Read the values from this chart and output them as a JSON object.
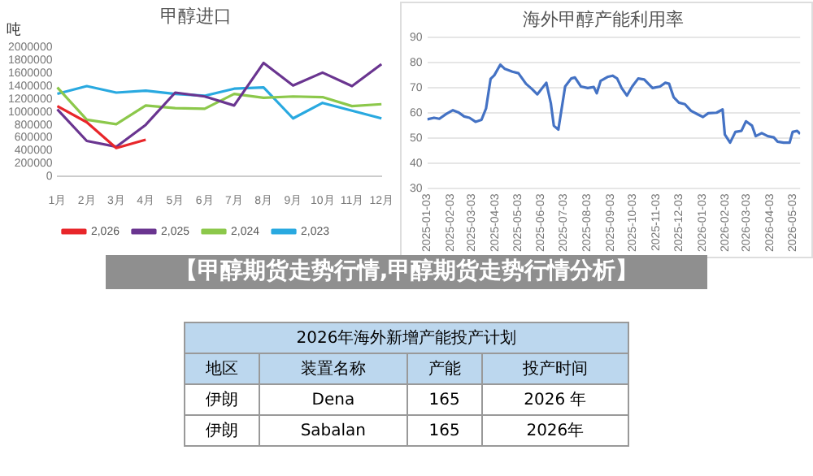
{
  "chart_data": [
    {
      "type": "line",
      "title": "甲醇进口",
      "ylabel": "吨",
      "categories": [
        "1月",
        "2月",
        "3月",
        "4月",
        "5月",
        "6月",
        "7月",
        "8月",
        "9月",
        "10月",
        "11月",
        "12月"
      ],
      "ylim": [
        0,
        2000000
      ],
      "yticks": [
        0,
        200000,
        400000,
        600000,
        800000,
        1000000,
        1200000,
        1400000,
        1600000,
        1800000,
        2000000
      ],
      "grid": false,
      "legend": "bottom",
      "series": [
        {
          "name": "2,026",
          "color": "#e8262a",
          "values": [
            1090000,
            840000,
            440000,
            570000,
            null,
            null,
            null,
            null,
            null,
            null,
            null,
            null
          ]
        },
        {
          "name": "2,025",
          "color": "#6a3590",
          "values": [
            1040000,
            550000,
            460000,
            800000,
            1300000,
            1240000,
            1100000,
            1760000,
            1410000,
            1610000,
            1400000,
            1740000
          ]
        },
        {
          "name": "2,024",
          "color": "#8cc84b",
          "values": [
            1380000,
            880000,
            810000,
            1100000,
            1060000,
            1050000,
            1280000,
            1220000,
            1240000,
            1230000,
            1090000,
            1120000
          ]
        },
        {
          "name": "2,023",
          "color": "#29a9e0",
          "values": [
            1280000,
            1400000,
            1300000,
            1330000,
            1280000,
            1250000,
            1360000,
            1380000,
            900000,
            1140000,
            1020000,
            900000
          ]
        }
      ]
    },
    {
      "type": "line",
      "title": "海外甲醇产能利用率",
      "ylim": [
        30,
        90
      ],
      "yticks": [
        30,
        40,
        50,
        60,
        70,
        80,
        90
      ],
      "grid": "y",
      "legend": false,
      "xlim": [
        "2025-01-03",
        "2026-05-13"
      ],
      "xticks": [
        "2025-01-03",
        "2025-02-03",
        "2025-03-03",
        "2025-04-03",
        "2025-05-03",
        "2025-06-03",
        "2025-07-03",
        "2025-08-03",
        "2025-09-03",
        "2025-10-03",
        "2025-11-03",
        "2025-12-03",
        "2026-01-03",
        "2026-02-03",
        "2026-03-03",
        "2026-04-03",
        "2026-05-03"
      ],
      "x": [
        "2025-01-03",
        "2025-01-12",
        "2025-01-19",
        "2025-01-28",
        "2025-02-06",
        "2025-02-13",
        "2025-02-21",
        "2025-02-28",
        "2025-03-08",
        "2025-03-16",
        "2025-03-22",
        "2025-03-28",
        "2025-04-02",
        "2025-04-10",
        "2025-04-16",
        "2025-04-26",
        "2025-05-04",
        "2025-05-14",
        "2025-05-22",
        "2025-05-29",
        "2025-06-10",
        "2025-06-16",
        "2025-06-20",
        "2025-06-26",
        "2025-07-05",
        "2025-07-13",
        "2025-07-18",
        "2025-07-26",
        "2025-08-04",
        "2025-08-12",
        "2025-08-16",
        "2025-08-21",
        "2025-08-31",
        "2025-09-06",
        "2025-09-12",
        "2025-09-18",
        "2025-09-25",
        "2025-10-02",
        "2025-10-10",
        "2025-10-18",
        "2025-10-29",
        "2025-11-08",
        "2025-11-15",
        "2025-11-20",
        "2025-11-26",
        "2025-12-03",
        "2025-12-11",
        "2025-12-19",
        "2025-12-29",
        "2026-01-04",
        "2026-01-11",
        "2026-01-22",
        "2026-01-30",
        "2026-02-02",
        "2026-02-09",
        "2026-02-16",
        "2026-02-24",
        "2026-03-02",
        "2026-03-10",
        "2026-03-15",
        "2026-03-23",
        "2026-03-31",
        "2026-04-08",
        "2026-04-13",
        "2026-04-21",
        "2026-04-29",
        "2026-05-03",
        "2026-05-09",
        "2026-05-13"
      ],
      "series": [
        {
          "color": "#4472c4",
          "values": [
            57.6,
            58.2,
            57.8,
            59.7,
            61.2,
            60.4,
            58.7,
            58.2,
            56.6,
            57.4,
            61.9,
            73.6,
            75.1,
            79.3,
            77.6,
            76.5,
            75.9,
            71.7,
            69.6,
            67.5,
            72.1,
            64,
            55,
            53.5,
            70.6,
            73.8,
            74.2,
            70.6,
            70,
            70.4,
            67.9,
            72.8,
            74.5,
            74.9,
            73.8,
            70,
            67,
            70.6,
            73.8,
            73.4,
            70,
            70.6,
            72.1,
            71.7,
            66.4,
            64.2,
            63.6,
            61,
            59.4,
            58.5,
            60,
            60.2,
            61.5,
            51.5,
            48.3,
            52.6,
            53,
            56.8,
            55.1,
            50.9,
            52.1,
            50.9,
            50.4,
            48.7,
            48.3,
            48.3,
            52.6,
            53,
            51.8
          ]
        }
      ]
    },
    {
      "type": "other",
      "title": "【甲醇期货走势行情,甲醇期货走势行情分析】"
    },
    {
      "type": "other",
      "title": "2026年海外新增产能投产计划",
      "annotations": [
        "地区",
        "装置名称",
        "产能",
        "投产时间",
        "伊朗",
        "Dena",
        "165",
        "2026 年",
        "伊朗",
        "Sabalan",
        "165",
        "2026年"
      ]
    }
  ]
}
